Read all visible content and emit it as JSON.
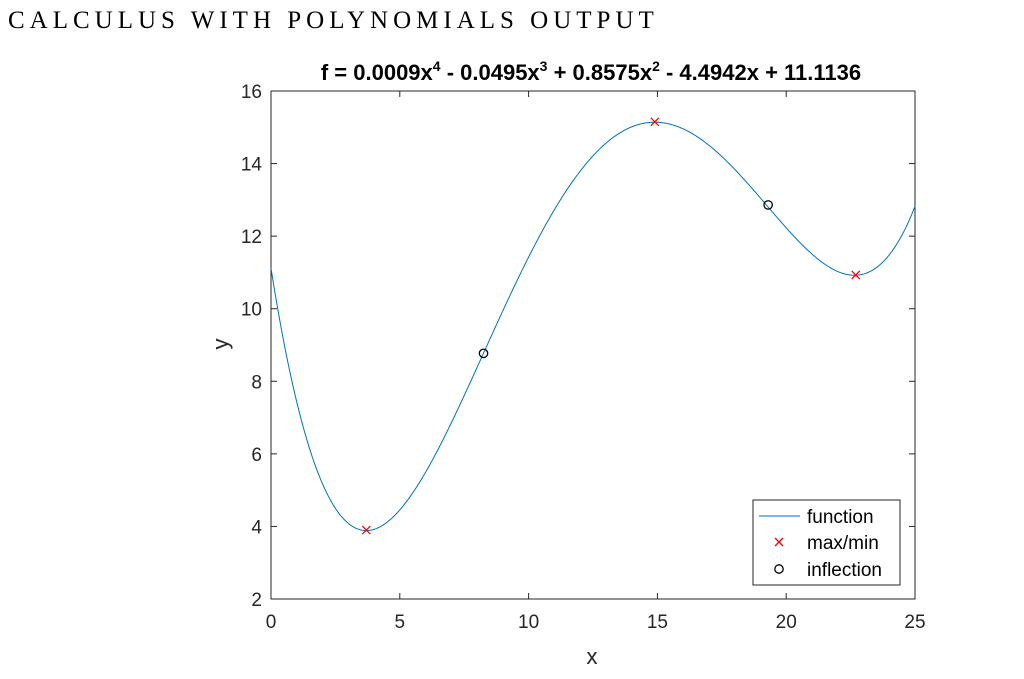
{
  "page": {
    "heading": "CALCULUS WITH POLYNOMIALS OUTPUT"
  },
  "chart_data": {
    "type": "line",
    "title": {
      "prefix": "f = 0.0009x",
      "sup1": "4",
      "part2": " - 0.0495x",
      "sup2": "3",
      "part3": " + 0.8575x",
      "sup3": "2",
      "part4": " - 4.4942x + 11.1136"
    },
    "xlabel": "x",
    "ylabel": "y",
    "xlim": [
      0,
      25
    ],
    "ylim": [
      2,
      16
    ],
    "xticks": [
      0,
      5,
      10,
      15,
      20,
      25
    ],
    "yticks": [
      2,
      4,
      6,
      8,
      10,
      12,
      14,
      16
    ],
    "grid": false,
    "legend_placement": "bottom-right",
    "coefficients": [
      0.0009,
      -0.0495,
      0.8575,
      -4.4942,
      11.1136
    ],
    "series": [
      {
        "name": "function",
        "type": "line",
        "color": "#0072BD"
      },
      {
        "name": "max/min",
        "type": "scatter",
        "marker": "x",
        "color": "#FF0000",
        "points": [
          [
            3.7,
            3.9
          ],
          [
            14.9,
            15.15
          ],
          [
            22.7,
            10.93
          ]
        ]
      },
      {
        "name": "inflection",
        "type": "scatter",
        "marker": "o",
        "color": "#000000",
        "points": [
          [
            8.25,
            8.77
          ],
          [
            19.3,
            12.86
          ]
        ]
      }
    ]
  }
}
